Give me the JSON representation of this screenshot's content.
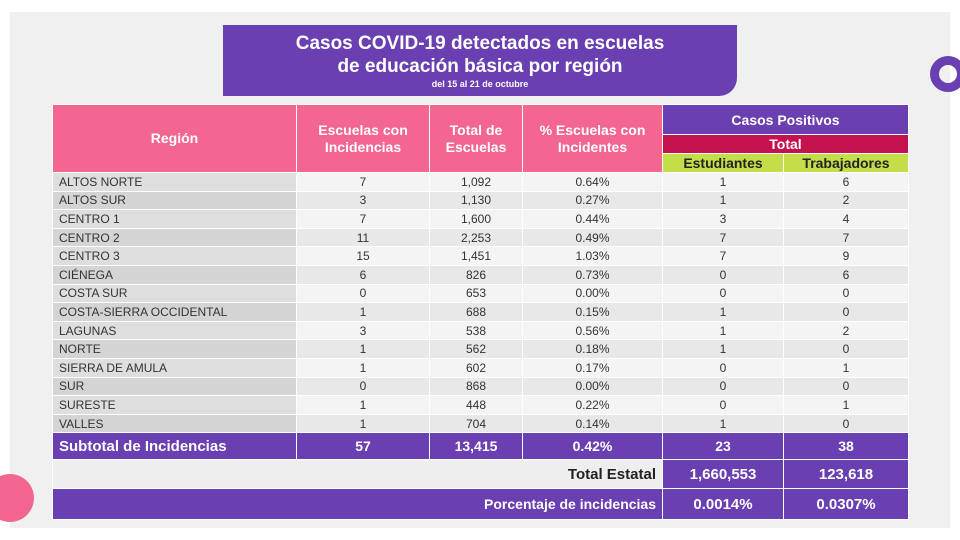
{
  "title": {
    "line1": "Casos COVID-19 detectados en escuelas",
    "line2": "de educación básica por región",
    "subtitle": "del 15 al 21 de octubre"
  },
  "headers": {
    "region": "Región",
    "escuelas_incidencias": "Escuelas con Incidencias",
    "total_escuelas": "Total de Escuelas",
    "pct_escuelas": "% Escuelas con Incidentes",
    "casos_positivos": "Casos Positivos",
    "total": "Total",
    "estudiantes": "Estudiantes",
    "trabajadores": "Trabajadores"
  },
  "rows": [
    {
      "region": "ALTOS NORTE",
      "esc": "7",
      "tot": "1,092",
      "pct": "0.64%",
      "est": "1",
      "trab": "6"
    },
    {
      "region": "ALTOS SUR",
      "esc": "3",
      "tot": "1,130",
      "pct": "0.27%",
      "est": "1",
      "trab": "2"
    },
    {
      "region": "CENTRO 1",
      "esc": "7",
      "tot": "1,600",
      "pct": "0.44%",
      "est": "3",
      "trab": "4"
    },
    {
      "region": "CENTRO 2",
      "esc": "11",
      "tot": "2,253",
      "pct": "0.49%",
      "est": "7",
      "trab": "7"
    },
    {
      "region": "CENTRO 3",
      "esc": "15",
      "tot": "1,451",
      "pct": "1.03%",
      "est": "7",
      "trab": "9"
    },
    {
      "region": "CIÉNEGA",
      "esc": "6",
      "tot": "826",
      "pct": "0.73%",
      "est": "0",
      "trab": "6"
    },
    {
      "region": "COSTA SUR",
      "esc": "0",
      "tot": "653",
      "pct": "0.00%",
      "est": "0",
      "trab": "0"
    },
    {
      "region": "COSTA-SIERRA OCCIDENTAL",
      "esc": "1",
      "tot": "688",
      "pct": "0.15%",
      "est": "1",
      "trab": "0"
    },
    {
      "region": "LAGUNAS",
      "esc": "3",
      "tot": "538",
      "pct": "0.56%",
      "est": "1",
      "trab": "2"
    },
    {
      "region": "NORTE",
      "esc": "1",
      "tot": "562",
      "pct": "0.18%",
      "est": "1",
      "trab": "0"
    },
    {
      "region": "SIERRA DE AMULA",
      "esc": "1",
      "tot": "602",
      "pct": "0.17%",
      "est": "0",
      "trab": "1"
    },
    {
      "region": "SUR",
      "esc": "0",
      "tot": "868",
      "pct": "0.00%",
      "est": "0",
      "trab": "0"
    },
    {
      "region": "SURESTE",
      "esc": "1",
      "tot": "448",
      "pct": "0.22%",
      "est": "0",
      "trab": "1"
    },
    {
      "region": "VALLES",
      "esc": "1",
      "tot": "704",
      "pct": "0.14%",
      "est": "1",
      "trab": "0"
    }
  ],
  "subtotal": {
    "label": "Subtotal de Incidencias",
    "esc": "57",
    "tot": "13,415",
    "pct": "0.42%",
    "est": "23",
    "trab": "38"
  },
  "total_estatal": {
    "label": "Total Estatal",
    "est": "1,660,553",
    "trab": "123,618"
  },
  "porcentaje": {
    "label": "Porcentaje de incidencias",
    "est": "0.0014%",
    "trab": "0.0307%"
  },
  "colors": {
    "purple": "#6a3fb1",
    "pink": "#f2668f",
    "red": "#c4124f",
    "green": "#c4de4a"
  }
}
